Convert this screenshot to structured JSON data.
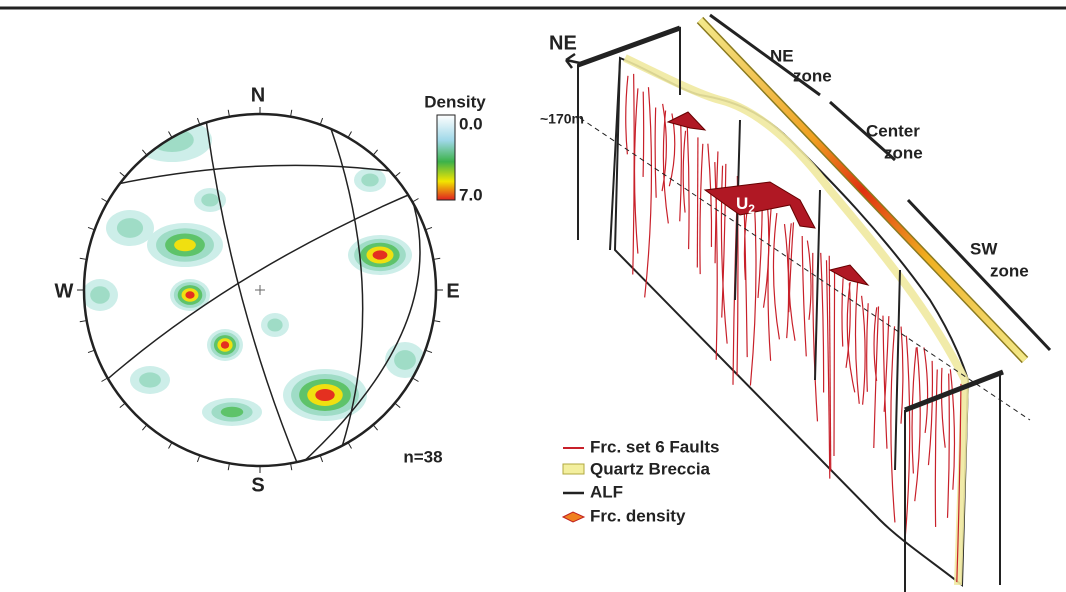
{
  "stereonet": {
    "north": "N",
    "south": "S",
    "east": "E",
    "west": "W",
    "count": "n=38",
    "colorbar": {
      "title": "Density",
      "min_label": "0.0",
      "max_label": "7.0"
    }
  },
  "block_diagram": {
    "direction": "NE",
    "depth": "~170m",
    "zones": [
      {
        "name": "NE",
        "suffix": "zone"
      },
      {
        "name": "Center",
        "suffix": "zone"
      },
      {
        "name": "SW",
        "suffix": "zone"
      }
    ],
    "unit": {
      "label": "U",
      "subscript": "2"
    },
    "legend": [
      "Frc. set 6 Faults",
      "Quartz Breccia",
      "ALF",
      "Frc. density"
    ]
  }
}
